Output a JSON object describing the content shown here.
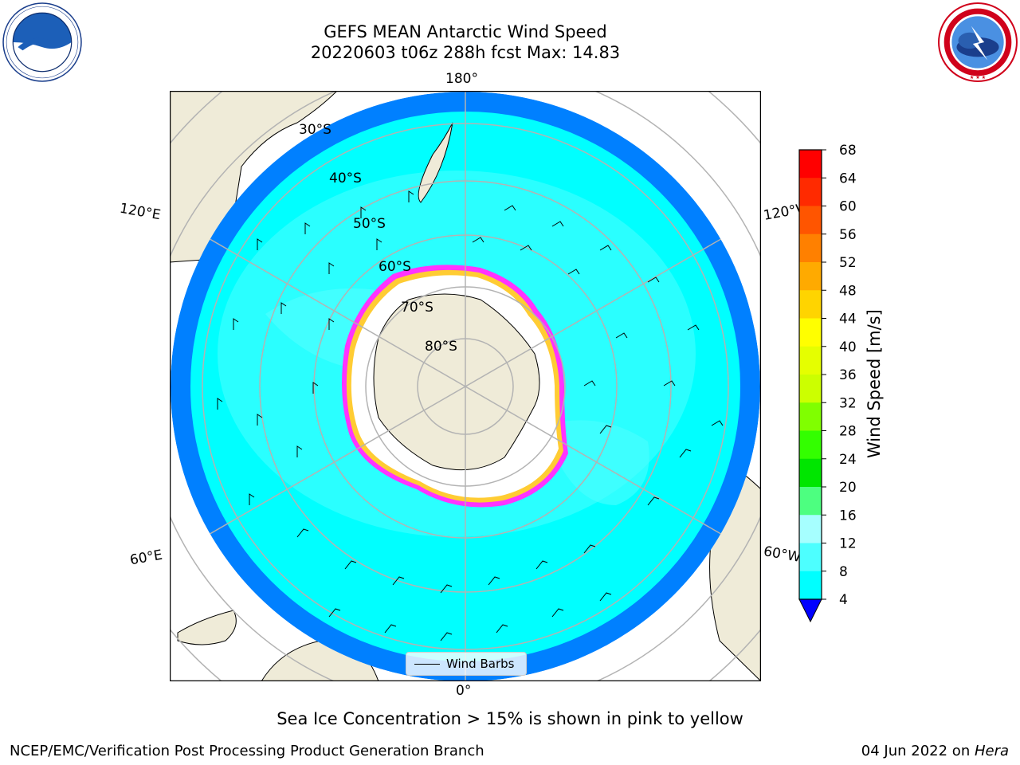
{
  "title": {
    "line1": "GEFS MEAN Antarctic Wind Speed",
    "line2": "20220603 t06z 288h fcst   Max: 14.83"
  },
  "map": {
    "projection": "south-polar-stereographic",
    "longitude_labels": {
      "top": "180°",
      "bottom": "0°",
      "upper_left": "120°E",
      "upper_right": "120°W",
      "lower_left": "60°E",
      "lower_right": "60°W"
    },
    "latitude_labels": [
      "30°S",
      "40°S",
      "50°S",
      "60°S",
      "70°S",
      "80°S"
    ],
    "colors": {
      "land": "#efebd8",
      "ocean_low": "#0080ff",
      "ocean_mid": "#00ffff",
      "ocean_high": "#4dffff",
      "ice_fill": "#ffffff",
      "ice_edge_pink": "#ff33ff",
      "ice_edge_yellow": "#ffcc33",
      "grid": "#b3b3b3"
    }
  },
  "legend": {
    "label": "Wind Barbs"
  },
  "colorbar": {
    "title": "Wind Speed [m/s]",
    "ticks": [
      "68",
      "64",
      "60",
      "56",
      "52",
      "48",
      "44",
      "40",
      "36",
      "32",
      "28",
      "24",
      "20",
      "16",
      "12",
      "8",
      "4"
    ],
    "colors": [
      "#ff0000",
      "#ff2a00",
      "#ff5500",
      "#ff8000",
      "#ffaa00",
      "#ffd400",
      "#ffff00",
      "#e5ff00",
      "#ccff00",
      "#80ff00",
      "#33ff00",
      "#00e600",
      "#4dff80",
      "#a6ffff",
      "#4dffff",
      "#00ffff",
      "#0080ff"
    ],
    "extend_color": "#0000ff"
  },
  "caption": "Sea Ice Concentration > 15% is shown in pink to yellow",
  "footer": {
    "left": "NCEP/EMC/Verification Post Processing Product Generation Branch",
    "right_date": "04 Jun 2022 on ",
    "right_host": "Hera"
  }
}
